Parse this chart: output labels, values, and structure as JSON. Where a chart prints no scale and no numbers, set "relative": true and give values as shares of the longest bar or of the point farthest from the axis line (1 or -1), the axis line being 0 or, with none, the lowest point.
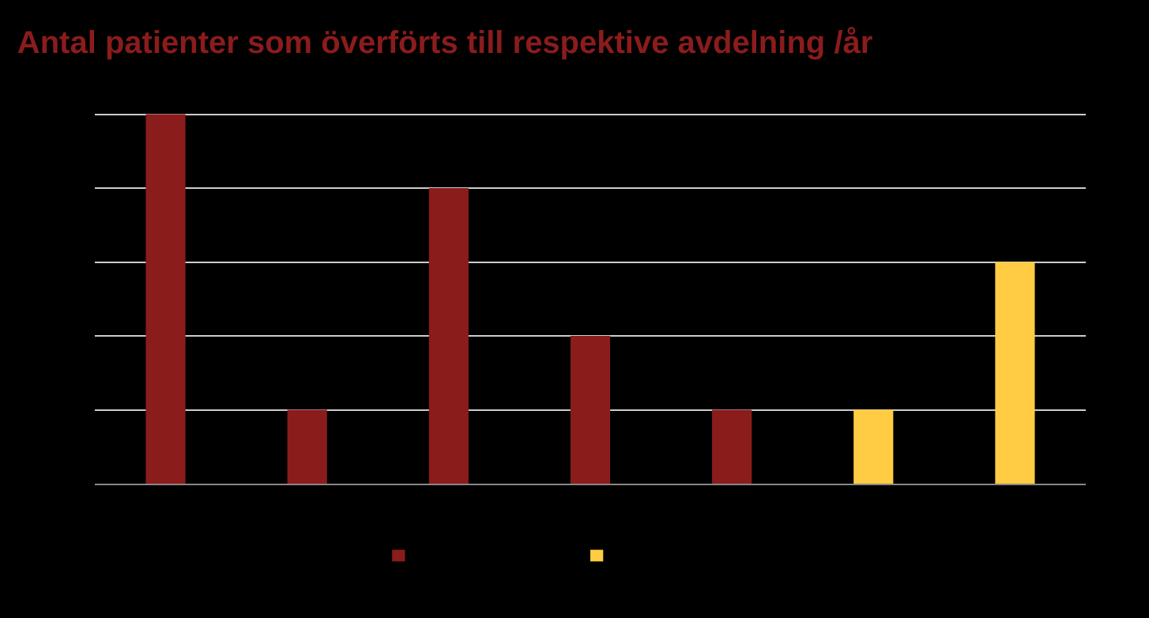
{
  "chart_data": {
    "type": "bar",
    "title": "Antal patienter som överförts till respektive avdelning /år",
    "categories": [
      null,
      null,
      null,
      null,
      null,
      null,
      null
    ],
    "relative": true,
    "values": [
      1,
      0.2,
      0.8,
      0.4,
      0.2,
      0.2,
      0.6
    ],
    "colors": [
      "#8b1c1c",
      "#8b1c1c",
      "#8b1c1c",
      "#8b1c1c",
      "#8b1c1c",
      "#ffcc44",
      "#ffcc44"
    ],
    "grid": "y"
  }
}
